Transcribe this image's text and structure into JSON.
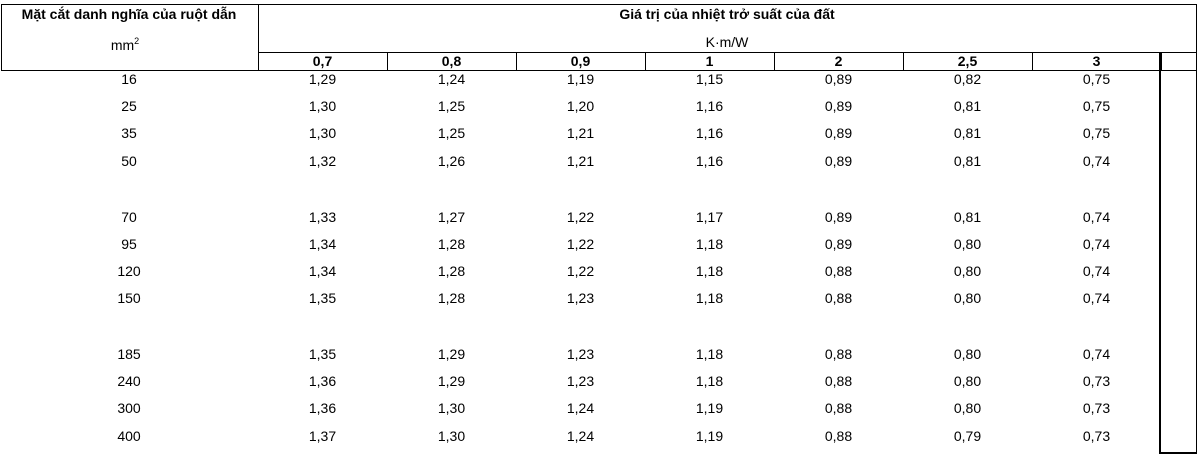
{
  "header": {
    "row_label": "Mặt cắt danh nghĩa của ruột dẫn",
    "row_unit": "mm",
    "row_unit_exp": "2",
    "title": "Giá trị của nhiệt trở suất của đất",
    "unit": "K·m/W"
  },
  "table": {
    "columns": [
      "0,7",
      "0,8",
      "0,9",
      "1",
      "2",
      "2,5",
      "3"
    ],
    "rows": [
      [
        "16",
        "1,29",
        "1,24",
        "1,19",
        "1,15",
        "0,89",
        "0,82",
        "0,75"
      ],
      [
        "25",
        "1,30",
        "1,25",
        "1,20",
        "1,16",
        "0,89",
        "0,81",
        "0,75"
      ],
      [
        "35",
        "1,30",
        "1,25",
        "1,21",
        "1,16",
        "0,89",
        "0,81",
        "0,75"
      ],
      [
        "50",
        "1,32",
        "1,26",
        "1,21",
        "1,16",
        "0,89",
        "0,81",
        "0,74"
      ],
      [
        "70",
        "1,33",
        "1,27",
        "1,22",
        "1,17",
        "0,89",
        "0,81",
        "0,74"
      ],
      [
        "95",
        "1,34",
        "1,28",
        "1,22",
        "1,18",
        "0,89",
        "0,80",
        "0,74"
      ],
      [
        "120",
        "1,34",
        "1,28",
        "1,22",
        "1,18",
        "0,88",
        "0,80",
        "0,74"
      ],
      [
        "150",
        "1,35",
        "1,28",
        "1,23",
        "1,18",
        "0,88",
        "0,80",
        "0,74"
      ],
      [
        "185",
        "1,35",
        "1,29",
        "1,23",
        "1,18",
        "0,88",
        "0,80",
        "0,74"
      ],
      [
        "240",
        "1,36",
        "1,29",
        "1,23",
        "1,18",
        "0,88",
        "0,80",
        "0,73"
      ],
      [
        "300",
        "1,36",
        "1,30",
        "1,24",
        "1,19",
        "0,88",
        "0,80",
        "0,73"
      ],
      [
        "400",
        "1,37",
        "1,30",
        "1,24",
        "1,19",
        "0,88",
        "0,79",
        "0,73"
      ]
    ]
  }
}
